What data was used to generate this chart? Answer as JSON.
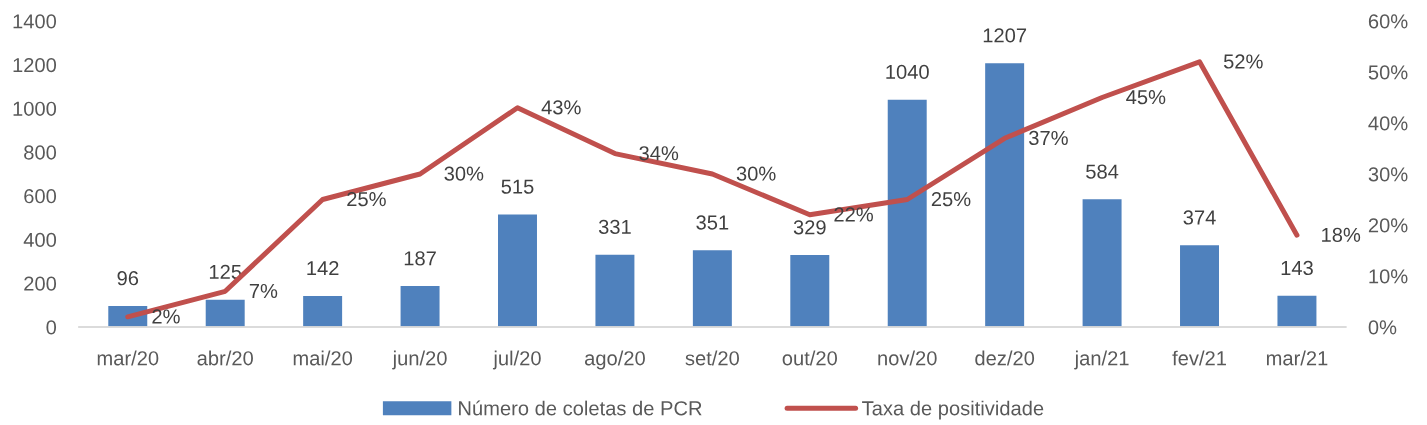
{
  "chart_data": {
    "type": "bar",
    "categories": [
      "mar/20",
      "abr/20",
      "mai/20",
      "jun/20",
      "jul/20",
      "ago/20",
      "set/20",
      "out/20",
      "nov/20",
      "dez/20",
      "jan/21",
      "fev/21",
      "mar/21"
    ],
    "series": [
      {
        "name": "Número de coletas de PCR",
        "color": "#4f81bd",
        "values": [
          96,
          125,
          142,
          187,
          515,
          331,
          351,
          329,
          1040,
          1207,
          584,
          374,
          143
        ],
        "data_labels": true
      },
      {
        "name": "Taxa de positividade",
        "type": "line",
        "axis": "y2",
        "color": "#c0504d",
        "values": [
          2,
          7,
          25,
          30,
          43,
          34,
          30,
          22,
          25,
          37,
          45,
          52,
          18
        ],
        "value_labels": [
          "2%",
          "7%",
          "25%",
          "30%",
          "43%",
          "34%",
          "30%",
          "22%",
          "25%",
          "37%",
          "45%",
          "52%",
          "18%"
        ]
      }
    ],
    "ylim": [
      0,
      1400
    ],
    "yticks": [
      0,
      200,
      400,
      600,
      800,
      1000,
      1200,
      1400
    ],
    "y2lim": [
      0,
      60
    ],
    "y2ticks": [
      {
        "value": 0,
        "label": "0%"
      },
      {
        "value": 10,
        "label": "10%"
      },
      {
        "value": 20,
        "label": "20%"
      },
      {
        "value": 30,
        "label": "30%"
      },
      {
        "value": 40,
        "label": "40%"
      },
      {
        "value": 50,
        "label": "50%"
      },
      {
        "value": 60,
        "label": "60%"
      }
    ],
    "grid": false,
    "legend": "bottom",
    "marker": "none",
    "line_style": "solid"
  }
}
